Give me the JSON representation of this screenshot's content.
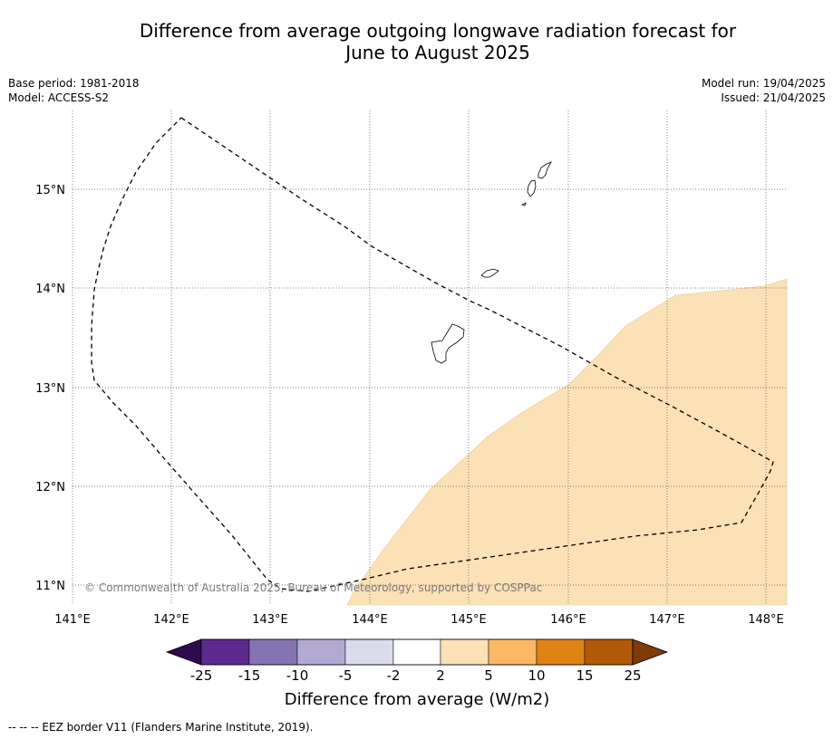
{
  "title": {
    "line1": "Difference from average outgoing longwave radiation forecast for",
    "line2": "June to August 2025"
  },
  "meta": {
    "base_period": "Base period: 1981-2018",
    "model": "Model: ACCESS-S2",
    "model_run": "Model run: 19/04/2025",
    "issued": "Issued: 21/04/2025"
  },
  "map": {
    "lon_labels": [
      "141°E",
      "142°E",
      "143°E",
      "144°E",
      "145°E",
      "146°E",
      "147°E",
      "148°E"
    ],
    "lat_labels": [
      "15°N",
      "14°N",
      "13°N",
      "12°N",
      "11°N"
    ],
    "copyright": "© Commonwealth of Australia 2025, Bureau of Meteorology, supported by COSPPac",
    "anomaly_fill_color": "#fce0b6",
    "eez_border_color": "#000000"
  },
  "colorbar": {
    "title": "Difference from average (W/m2)",
    "ticks": [
      "-25",
      "-15",
      "-10",
      "-5",
      "-2",
      "2",
      "5",
      "10",
      "15",
      "25"
    ],
    "colors": [
      "#2e0a4e",
      "#5c2a8e",
      "#8574b2",
      "#b2aad3",
      "#dadbec",
      "#ffffff",
      "#fce0b6",
      "#fdb863",
      "#e08214",
      "#b35806",
      "#7f3b08"
    ]
  },
  "footer": {
    "legend": "--  --  -- EEZ border V11 (Flanders Marine Institute, 2019)."
  }
}
